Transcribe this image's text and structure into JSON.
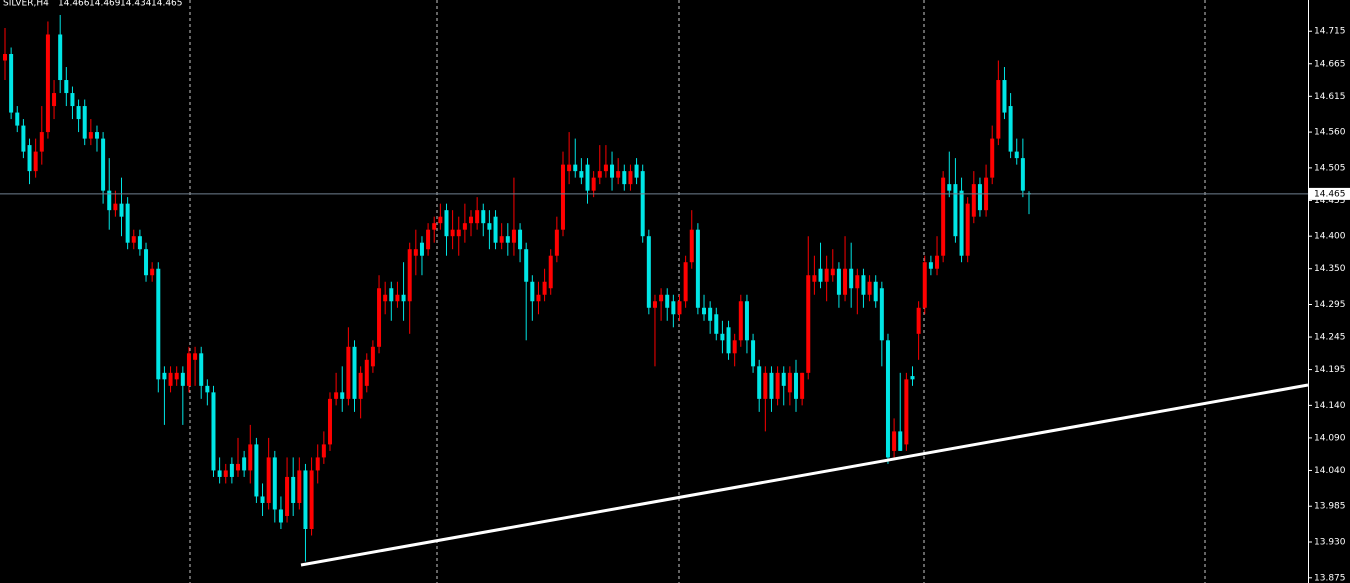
{
  "chart_data": {
    "type": "candlestick",
    "symbol": "SILVER,H4",
    "up_color": "#ff0000",
    "down_color": "#00e6e6",
    "price_line_color": "#708090",
    "ylim": [
      13.867,
      14.763
    ],
    "yticks": [
      14.715,
      14.665,
      14.615,
      {
        "value": 14.56,
        "label": "14.560"
      },
      14.505,
      14.455,
      {
        "value": 14.4,
        "label": "14.400"
      },
      {
        "value": 14.35,
        "label": "14.350"
      },
      14.295,
      14.245,
      14.195,
      {
        "value": 14.14,
        "label": "14.140"
      },
      {
        "value": 14.09,
        "label": "14.090"
      },
      {
        "value": 14.04,
        "label": "14.040"
      },
      13.985,
      {
        "value": 13.93,
        "label": "13.930"
      },
      13.875
    ],
    "open": [
      14.67,
      14.68,
      14.59,
      14.57,
      14.54,
      14.5,
      14.53,
      14.56,
      14.6,
      14.71,
      14.64,
      14.62,
      14.6,
      14.6,
      14.55,
      14.56,
      14.55,
      14.47,
      14.44,
      14.45,
      14.45,
      14.39,
      14.4,
      14.38,
      14.34,
      14.35,
      14.19,
      14.17,
      14.18,
      14.19,
      14.17,
      14.21,
      14.22,
      14.17,
      14.16,
      14.04,
      14.03,
      14.05,
      14.04,
      14.06,
      14.04,
      14.08,
      14.0,
      13.99,
      14.06,
      13.98,
      13.97,
      14.03,
      13.99,
      14.04,
      13.95,
      14.04,
      14.06,
      14.08,
      14.15,
      14.16,
      14.15,
      14.23,
      14.15,
      14.17,
      14.2,
      14.23,
      14.3,
      14.32,
      14.3,
      14.31,
      14.3,
      14.37,
      14.39,
      14.38,
      14.41,
      14.42,
      14.44,
      14.4,
      14.4,
      14.41,
      14.42,
      14.42,
      14.44,
      14.42,
      14.43,
      14.39,
      14.4,
      14.39,
      14.41,
      14.38,
      14.33,
      14.3,
      14.31,
      14.32,
      14.37,
      14.41,
      14.5,
      14.51,
      14.5,
      14.51,
      14.47,
      14.49,
      14.5,
      14.51,
      14.49,
      14.5,
      14.48,
      14.51,
      14.5,
      14.4,
      14.29,
      14.3,
      14.31,
      14.3,
      14.28,
      14.3,
      14.36,
      14.41,
      14.29,
      14.29,
      14.28,
      14.25,
      14.26,
      14.22,
      14.24,
      14.3,
      14.24,
      14.2,
      14.15,
      14.19,
      14.15,
      14.19,
      14.16,
      14.19,
      14.15,
      14.19,
      14.33,
      14.35,
      14.33,
      14.34,
      14.35,
      14.31,
      14.35,
      14.32,
      14.34,
      14.31,
      14.33,
      14.32,
      14.24,
      14.07,
      14.1,
      14.08,
      14.185,
      14.25,
      14.29,
      14.36,
      14.35,
      14.37,
      14.48,
      14.48,
      14.47,
      14.37,
      14.43,
      14.48,
      14.44,
      14.49,
      14.55,
      14.64,
      14.6,
      14.53,
      14.52,
      14.466
    ],
    "high": [
      14.72,
      14.69,
      14.6,
      14.58,
      14.55,
      14.55,
      14.6,
      14.73,
      14.64,
      14.74,
      14.66,
      14.63,
      14.61,
      14.61,
      14.58,
      14.57,
      14.56,
      14.52,
      14.47,
      14.49,
      14.46,
      14.41,
      14.41,
      14.39,
      14.36,
      14.36,
      14.2,
      14.2,
      14.2,
      14.2,
      14.23,
      14.23,
      14.23,
      14.18,
      14.17,
      14.06,
      14.05,
      14.06,
      14.09,
      14.07,
      14.11,
      14.09,
      14.02,
      14.09,
      14.07,
      14.0,
      14.06,
      14.06,
      14.06,
      14.05,
      14.06,
      14.08,
      14.1,
      14.16,
      14.19,
      14.2,
      14.26,
      14.24,
      14.2,
      14.22,
      14.24,
      14.34,
      14.33,
      14.33,
      14.33,
      14.36,
      14.39,
      14.41,
      14.4,
      14.42,
      14.43,
      14.45,
      14.45,
      14.44,
      14.43,
      14.45,
      14.44,
      14.46,
      14.45,
      14.44,
      14.44,
      14.42,
      14.42,
      14.49,
      14.42,
      14.39,
      14.34,
      14.33,
      14.35,
      14.38,
      14.43,
      14.53,
      14.56,
      14.55,
      14.52,
      14.52,
      14.5,
      14.54,
      14.54,
      14.53,
      14.52,
      14.51,
      14.51,
      14.52,
      14.51,
      14.41,
      14.31,
      14.32,
      14.32,
      14.31,
      14.31,
      14.37,
      14.44,
      14.42,
      14.31,
      14.3,
      14.29,
      14.27,
      14.27,
      14.25,
      14.31,
      14.31,
      14.25,
      14.21,
      14.2,
      14.2,
      14.2,
      14.2,
      14.2,
      14.21,
      14.19,
      14.4,
      14.37,
      14.39,
      14.37,
      14.38,
      14.36,
      14.4,
      14.39,
      14.35,
      14.35,
      14.34,
      14.34,
      14.33,
      14.25,
      14.12,
      14.19,
      14.19,
      14.2,
      14.3,
      14.37,
      14.37,
      14.4,
      14.5,
      14.53,
      14.52,
      14.49,
      14.46,
      14.5,
      14.49,
      14.51,
      14.57,
      14.67,
      14.66,
      14.62,
      14.55,
      14.55,
      14.469
    ],
    "low": [
      14.64,
      14.58,
      14.56,
      14.52,
      14.48,
      14.49,
      14.51,
      14.55,
      14.58,
      14.62,
      14.6,
      14.58,
      14.56,
      14.54,
      14.54,
      14.53,
      14.45,
      14.41,
      14.43,
      14.4,
      14.38,
      14.38,
      14.37,
      14.33,
      14.33,
      14.16,
      14.11,
      14.16,
      14.17,
      14.11,
      14.16,
      14.17,
      14.15,
      14.14,
      14.03,
      14.02,
      14.02,
      14.02,
      14.03,
      14.03,
      14.02,
      13.99,
      13.97,
      13.98,
      13.96,
      13.95,
      13.96,
      13.97,
      13.98,
      13.9,
      13.94,
      14.02,
      14.05,
      14.07,
      14.14,
      14.13,
      14.14,
      14.13,
      14.12,
      14.16,
      14.19,
      14.22,
      14.28,
      14.27,
      14.29,
      14.27,
      14.25,
      14.34,
      14.34,
      14.37,
      14.39,
      14.41,
      14.37,
      14.38,
      14.37,
      14.39,
      14.4,
      14.41,
      14.4,
      14.38,
      14.38,
      14.38,
      14.37,
      14.37,
      14.36,
      14.24,
      14.27,
      14.28,
      14.3,
      14.31,
      14.36,
      14.4,
      14.48,
      14.49,
      14.48,
      14.45,
      14.46,
      14.48,
      14.49,
      14.47,
      14.48,
      14.47,
      14.47,
      14.48,
      14.39,
      14.28,
      14.2,
      14.27,
      14.27,
      14.26,
      14.27,
      14.29,
      14.35,
      14.28,
      14.27,
      14.25,
      14.24,
      14.22,
      14.21,
      14.2,
      14.23,
      14.22,
      14.19,
      14.13,
      14.1,
      14.13,
      14.14,
      14.14,
      14.14,
      14.13,
      14.14,
      14.18,
      14.31,
      14.32,
      14.3,
      14.33,
      14.29,
      14.3,
      14.29,
      14.28,
      14.29,
      14.3,
      14.29,
      14.2,
      14.05,
      14.06,
      14.07,
      14.07,
      14.17,
      14.21,
      14.28,
      14.34,
      14.34,
      14.36,
      14.46,
      14.39,
      14.36,
      14.36,
      14.42,
      14.43,
      14.43,
      14.48,
      14.54,
      14.58,
      14.52,
      14.51,
      14.46,
      14.434
    ],
    "close": [
      14.68,
      14.59,
      14.57,
      14.53,
      14.5,
      14.53,
      14.56,
      14.71,
      14.62,
      14.64,
      14.62,
      14.6,
      14.58,
      14.55,
      14.56,
      14.55,
      14.47,
      14.44,
      14.45,
      14.43,
      14.39,
      14.4,
      14.38,
      14.34,
      14.35,
      14.18,
      14.18,
      14.19,
      14.19,
      14.17,
      14.22,
      14.22,
      14.17,
      14.16,
      14.04,
      14.03,
      14.04,
      14.03,
      14.05,
      14.04,
      14.08,
      14.0,
      13.99,
      14.06,
      13.98,
      13.96,
      14.03,
      13.99,
      14.04,
      13.95,
      14.04,
      14.06,
      14.08,
      14.15,
      14.16,
      14.15,
      14.23,
      14.15,
      14.19,
      14.21,
      14.23,
      14.32,
      14.31,
      14.3,
      14.31,
      14.3,
      14.38,
      14.38,
      14.37,
      14.41,
      14.42,
      14.43,
      14.4,
      14.41,
      14.41,
      14.42,
      14.43,
      14.44,
      14.42,
      14.41,
      14.39,
      14.4,
      14.39,
      14.41,
      14.38,
      14.33,
      14.3,
      14.31,
      14.33,
      14.37,
      14.41,
      14.51,
      14.51,
      14.5,
      14.49,
      14.47,
      14.49,
      14.5,
      14.51,
      14.49,
      14.5,
      14.48,
      14.5,
      14.49,
      14.4,
      14.29,
      14.3,
      14.31,
      14.29,
      14.28,
      14.3,
      14.36,
      14.41,
      14.29,
      14.28,
      14.27,
      14.25,
      14.24,
      14.22,
      14.24,
      14.3,
      14.24,
      14.2,
      14.15,
      14.19,
      14.15,
      14.19,
      14.17,
      14.19,
      14.15,
      14.19,
      14.34,
      14.34,
      14.33,
      14.35,
      14.35,
      14.31,
      14.35,
      14.32,
      14.34,
      14.31,
      14.33,
      14.3,
      14.24,
      14.06,
      14.1,
      14.07,
      14.18,
      14.18,
      14.29,
      14.36,
      14.35,
      14.37,
      14.49,
      14.47,
      14.4,
      14.37,
      14.45,
      14.48,
      14.44,
      14.49,
      14.55,
      14.64,
      14.59,
      14.53,
      14.52,
      14.47,
      14.465
    ]
  }
}
